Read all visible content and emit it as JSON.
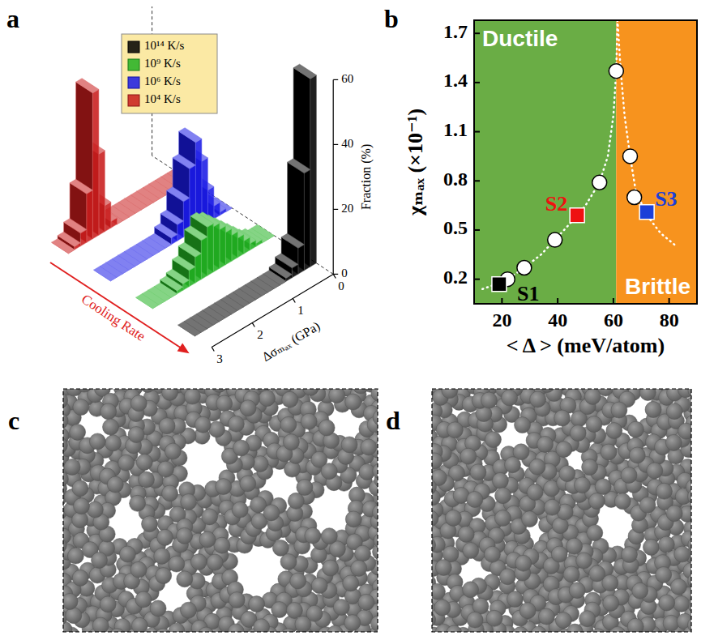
{
  "chart_data": [
    {
      "type": "bar3d",
      "xlabel": "Δσₘₐₓ (GPa)",
      "ylabel": "Fraction (%)",
      "bins": [
        0,
        0.15,
        0.3,
        0.45,
        0.6,
        0.75,
        0.9,
        1.05,
        1.2,
        1.35,
        1.5,
        1.65,
        1.8,
        1.95,
        2.1,
        2.25,
        2.4,
        2.55,
        2.7,
        2.85,
        3
      ],
      "series": [
        {
          "name": "10¹⁴ K/s",
          "color": "#000000",
          "values": [
            58,
            30,
            8,
            3,
            1,
            0,
            0,
            0,
            0,
            0,
            0,
            0,
            0,
            0,
            0,
            0,
            0,
            0,
            0,
            0
          ]
        },
        {
          "name": "10⁹ K/s",
          "color": "#22b022",
          "values": [
            0,
            0,
            1,
            2,
            4,
            6,
            8,
            10,
            12,
            14,
            15,
            12,
            8,
            5,
            2,
            1,
            0,
            0,
            0,
            0
          ]
        },
        {
          "name": "10⁶ K/s",
          "color": "#1a1ae6",
          "values": [
            0,
            1,
            4,
            10,
            20,
            27,
            20,
            11,
            5,
            2,
            0,
            0,
            0,
            0,
            0,
            0,
            0,
            0,
            0,
            0
          ]
        },
        {
          "name": "10⁴ K/s",
          "color": "#c81c1c",
          "values": [
            0,
            0,
            0,
            0,
            0,
            0,
            0,
            0,
            0,
            0,
            0,
            0,
            2,
            8,
            25,
            45,
            15,
            4,
            1,
            0
          ]
        }
      ],
      "xlim": [
        0,
        3
      ],
      "xticks": [
        0,
        1,
        2,
        3
      ],
      "ylim": [
        0,
        60
      ],
      "yticks": [
        0,
        20,
        40,
        60
      ],
      "legend": "top-left",
      "annotations": [
        {
          "text": "Cooling Rate",
          "color": "#e02020"
        }
      ]
    },
    {
      "type": "scatter",
      "xlabel": "< Δ > (meV/atom)",
      "ylabel": "χₘₐₓ (×10⁻¹)",
      "xlim": [
        10,
        90
      ],
      "xticks": [
        20,
        40,
        60,
        80
      ],
      "ylim": [
        0.05,
        1.78
      ],
      "yticks": [
        0.2,
        0.5,
        0.8,
        1.1,
        1.4,
        1.7
      ],
      "regions": [
        {
          "label": "Ductile",
          "x": [
            10,
            61
          ],
          "color": "#6aad45"
        },
        {
          "label": "Brittle",
          "x": [
            61,
            90
          ],
          "color": "#f7931e"
        }
      ],
      "series": [
        {
          "type": "line",
          "line_style": "dotted",
          "color": "#ffffff",
          "x": [
            13,
            18,
            22,
            28,
            34,
            39,
            45,
            50,
            55,
            58,
            60,
            61,
            61.5
          ],
          "values": [
            0.14,
            0.17,
            0.2,
            0.27,
            0.35,
            0.44,
            0.55,
            0.65,
            0.79,
            0.95,
            1.2,
            1.47,
            1.78
          ]
        },
        {
          "type": "line",
          "line_style": "dotted",
          "color": "#ffffff",
          "x": [
            61.5,
            62.5,
            64,
            66,
            68,
            72,
            77,
            82
          ],
          "values": [
            1.78,
            1.5,
            1.2,
            0.95,
            0.74,
            0.59,
            0.48,
            0.41
          ]
        },
        {
          "type": "scatter",
          "marker": "circle",
          "color": "#ffffff",
          "x": [
            22,
            28,
            39,
            55,
            61,
            66,
            67.5
          ],
          "values": [
            0.2,
            0.27,
            0.44,
            0.79,
            1.47,
            0.95,
            0.7
          ]
        },
        {
          "name": "S1",
          "type": "scatter",
          "marker": "square",
          "color": "#000000",
          "x": [
            19
          ],
          "values": [
            0.17
          ]
        },
        {
          "name": "S2",
          "type": "scatter",
          "marker": "square",
          "color": "#ee1111",
          "x": [
            47
          ],
          "values": [
            0.59
          ]
        },
        {
          "name": "S3",
          "type": "scatter",
          "marker": "square",
          "color": "#1c3fd8",
          "x": [
            72
          ],
          "values": [
            0.61
          ]
        }
      ]
    }
  ],
  "panel_labels": [
    "a",
    "b",
    "c",
    "d"
  ]
}
